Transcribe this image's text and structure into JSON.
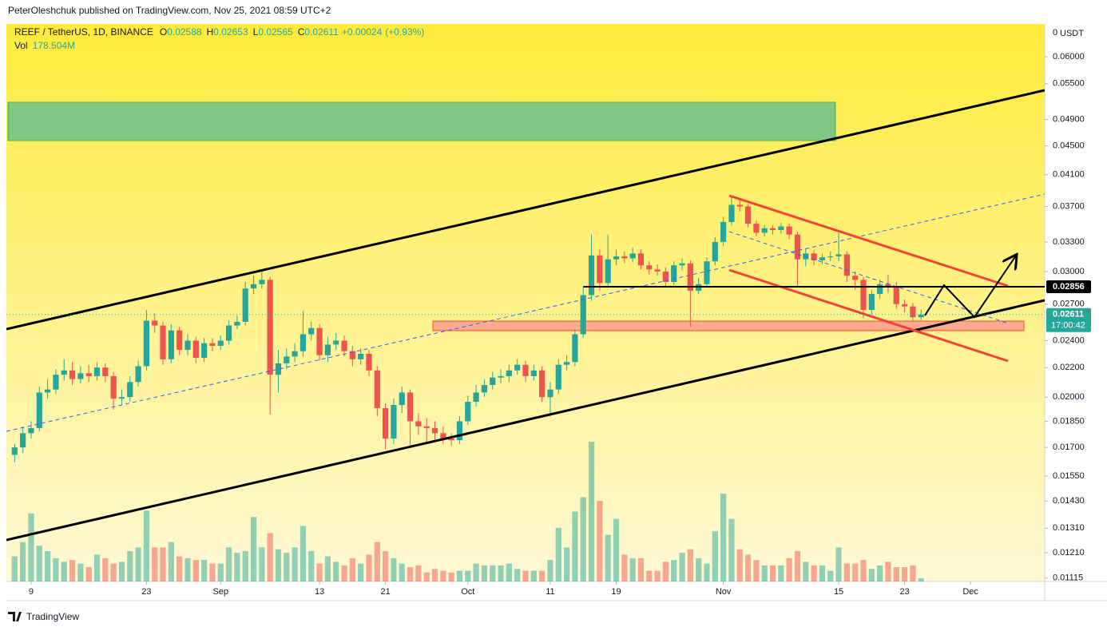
{
  "header": {
    "credit": "PeterOleshchuk published on TradingView.com, Nov 25, 2021 08:59 UTC+2"
  },
  "footer": {
    "brand": "TradingView"
  },
  "chart_data": {
    "type": "candlestick",
    "symbol": "REEF / TetherUS, 1D, BINANCE",
    "ohlc_labels": [
      "O",
      "H",
      "L",
      "C"
    ],
    "change": {
      "value": 0.00024,
      "label": "+0.00024"
    },
    "change_pct": {
      "value": 0.93,
      "label": "(+0.93%)"
    },
    "vol_legend": {
      "label": "Vol",
      "value_label": "178.504M"
    },
    "currency": "USDT",
    "axis_top_text": 0,
    "countdown": "17:00:42",
    "log_scale": true,
    "up_color": "#26a69a",
    "down_color": "#ef5350",
    "hline": {
      "value": 0.02856,
      "color": "#000000"
    },
    "ylim": [
      0.01103,
      0.0667
    ],
    "yticks": [
      {
        "value": 0.06,
        "label": "0.06000"
      },
      {
        "value": 0.055,
        "label": "0.05500"
      },
      {
        "value": 0.049,
        "label": "0.04900"
      },
      {
        "value": 0.045,
        "label": "0.04500"
      },
      {
        "value": 0.041,
        "label": "0.04100"
      },
      {
        "value": 0.037,
        "label": "0.03700"
      },
      {
        "value": 0.033,
        "label": "0.03300"
      },
      {
        "value": 0.03,
        "label": "0.03000"
      },
      {
        "value": 0.027,
        "label": "0.02700"
      },
      {
        "value": 0.024,
        "label": "0.02400"
      },
      {
        "value": 0.022,
        "label": "0.02200"
      },
      {
        "value": 0.02,
        "label": "0.02000"
      },
      {
        "value": 0.0185,
        "label": "0.01850"
      },
      {
        "value": 0.017,
        "label": "0.01700"
      },
      {
        "value": 0.0155,
        "label": "0.01550"
      },
      {
        "value": 0.0143,
        "label": "0.01430"
      },
      {
        "value": 0.0131,
        "label": "0.01310"
      },
      {
        "value": 0.0121,
        "label": "0.01210"
      },
      {
        "value": 0.01115,
        "label": "0.01115"
      }
    ],
    "xlim": [
      "2021-08-06",
      "2021-12-10"
    ],
    "xticks": [
      {
        "value": "2021-08-09",
        "label": "9"
      },
      {
        "value": "2021-08-23",
        "label": "23"
      },
      {
        "value": "2021-09-01",
        "label": "Sep"
      },
      {
        "value": "2021-09-13",
        "label": "13"
      },
      {
        "value": "2021-09-21",
        "label": "21"
      },
      {
        "value": "2021-10-01",
        "label": "Oct"
      },
      {
        "value": "2021-10-11",
        "label": "11"
      },
      {
        "value": "2021-10-19",
        "label": "19"
      },
      {
        "value": "2021-11-01",
        "label": "Nov"
      },
      {
        "value": "2021-11-15",
        "label": "15"
      },
      {
        "value": "2021-11-23",
        "label": "23"
      },
      {
        "value": "2021-12-01",
        "label": "Dec"
      }
    ],
    "x": [
      "2021-08-07",
      "2021-08-08",
      "2021-08-09",
      "2021-08-10",
      "2021-08-11",
      "2021-08-12",
      "2021-08-13",
      "2021-08-14",
      "2021-08-15",
      "2021-08-16",
      "2021-08-17",
      "2021-08-18",
      "2021-08-19",
      "2021-08-20",
      "2021-08-21",
      "2021-08-22",
      "2021-08-23",
      "2021-08-24",
      "2021-08-25",
      "2021-08-26",
      "2021-08-27",
      "2021-08-28",
      "2021-08-29",
      "2021-08-30",
      "2021-08-31",
      "2021-09-01",
      "2021-09-02",
      "2021-09-03",
      "2021-09-04",
      "2021-09-05",
      "2021-09-06",
      "2021-09-07",
      "2021-09-08",
      "2021-09-09",
      "2021-09-10",
      "2021-09-11",
      "2021-09-12",
      "2021-09-13",
      "2021-09-14",
      "2021-09-15",
      "2021-09-16",
      "2021-09-17",
      "2021-09-18",
      "2021-09-19",
      "2021-09-20",
      "2021-09-21",
      "2021-09-22",
      "2021-09-23",
      "2021-09-24",
      "2021-09-25",
      "2021-09-26",
      "2021-09-27",
      "2021-09-28",
      "2021-09-29",
      "2021-09-30",
      "2021-10-01",
      "2021-10-02",
      "2021-10-03",
      "2021-10-04",
      "2021-10-05",
      "2021-10-06",
      "2021-10-07",
      "2021-10-08",
      "2021-10-09",
      "2021-10-10",
      "2021-10-11",
      "2021-10-12",
      "2021-10-13",
      "2021-10-14",
      "2021-10-15",
      "2021-10-16",
      "2021-10-17",
      "2021-10-18",
      "2021-10-19",
      "2021-10-20",
      "2021-10-21",
      "2021-10-22",
      "2021-10-23",
      "2021-10-24",
      "2021-10-25",
      "2021-10-26",
      "2021-10-27",
      "2021-10-28",
      "2021-10-29",
      "2021-10-30",
      "2021-10-31",
      "2021-11-01",
      "2021-11-02",
      "2021-11-03",
      "2021-11-04",
      "2021-11-05",
      "2021-11-06",
      "2021-11-07",
      "2021-11-08",
      "2021-11-09",
      "2021-11-10",
      "2021-11-11",
      "2021-11-12",
      "2021-11-13",
      "2021-11-14",
      "2021-11-15",
      "2021-11-16",
      "2021-11-17",
      "2021-11-18",
      "2021-11-19",
      "2021-11-20",
      "2021-11-21",
      "2021-11-22",
      "2021-11-23",
      "2021-11-24",
      "2021-11-25"
    ],
    "open": [
      0.0166,
      0.017,
      0.0178,
      0.0181,
      0.0203,
      0.0205,
      0.0215,
      0.0218,
      0.0212,
      0.0216,
      0.0214,
      0.022,
      0.0214,
      0.0199,
      0.02,
      0.021,
      0.0221,
      0.0256,
      0.0252,
      0.0226,
      0.0248,
      0.0233,
      0.024,
      0.0227,
      0.0238,
      0.0236,
      0.024,
      0.0252,
      0.0255,
      0.0284,
      0.0288,
      0.0292,
      0.0215,
      0.0223,
      0.0228,
      0.0232,
      0.0245,
      0.025,
      0.0229,
      0.0237,
      0.024,
      0.0232,
      0.0226,
      0.023,
      0.0218,
      0.0193,
      0.0175,
      0.0195,
      0.0203,
      0.0185,
      0.0182,
      0.0181,
      0.0178,
      0.0175,
      0.0174,
      0.0185,
      0.0197,
      0.0203,
      0.0208,
      0.0213,
      0.0214,
      0.0218,
      0.0222,
      0.0214,
      0.0218,
      0.02,
      0.0205,
      0.0222,
      0.0224,
      0.0245,
      0.0278,
      0.0316,
      0.0289,
      0.0312,
      0.0315,
      0.0313,
      0.0318,
      0.0306,
      0.0302,
      0.03,
      0.029,
      0.0306,
      0.0308,
      0.0282,
      0.0288,
      0.031,
      0.033,
      0.0352,
      0.0372,
      0.037,
      0.035,
      0.034,
      0.0345,
      0.0343,
      0.0347,
      0.0338,
      0.0312,
      0.0318,
      0.0311,
      0.0314,
      0.0315,
      0.0317,
      0.0296,
      0.0292,
      0.0265,
      0.0279,
      0.0288,
      0.0286,
      0.027,
      0.0268,
      0.02588
    ],
    "high": [
      0.0172,
      0.0182,
      0.0185,
      0.0207,
      0.0212,
      0.0219,
      0.0226,
      0.0224,
      0.0221,
      0.0222,
      0.0224,
      0.0223,
      0.0217,
      0.0205,
      0.0214,
      0.0225,
      0.0265,
      0.0262,
      0.0255,
      0.0253,
      0.0251,
      0.0245,
      0.0243,
      0.0242,
      0.0242,
      0.0244,
      0.0256,
      0.026,
      0.029,
      0.0296,
      0.03,
      0.0295,
      0.0233,
      0.0234,
      0.0238,
      0.0264,
      0.0255,
      0.0253,
      0.0243,
      0.0246,
      0.0244,
      0.0236,
      0.0234,
      0.0233,
      0.0221,
      0.0196,
      0.0199,
      0.0207,
      0.0205,
      0.019,
      0.0187,
      0.0185,
      0.0182,
      0.0178,
      0.0188,
      0.0201,
      0.0208,
      0.0212,
      0.0217,
      0.0219,
      0.0222,
      0.0226,
      0.0225,
      0.0222,
      0.0221,
      0.021,
      0.0226,
      0.0229,
      0.0249,
      0.0285,
      0.0338,
      0.0322,
      0.0338,
      0.0322,
      0.032,
      0.0324,
      0.0322,
      0.031,
      0.0307,
      0.0304,
      0.031,
      0.0313,
      0.0311,
      0.0294,
      0.0314,
      0.0335,
      0.0358,
      0.0382,
      0.0378,
      0.0373,
      0.0354,
      0.0349,
      0.0348,
      0.0351,
      0.035,
      0.0341,
      0.0323,
      0.0322,
      0.0318,
      0.032,
      0.034,
      0.032,
      0.03,
      0.0295,
      0.0283,
      0.0292,
      0.0297,
      0.029,
      0.0274,
      0.0271,
      0.02653
    ],
    "low": [
      0.0162,
      0.0167,
      0.0175,
      0.0179,
      0.0199,
      0.0202,
      0.0211,
      0.0208,
      0.0209,
      0.021,
      0.0211,
      0.021,
      0.0192,
      0.0195,
      0.0197,
      0.0207,
      0.0218,
      0.0246,
      0.0222,
      0.0223,
      0.0229,
      0.0229,
      0.0223,
      0.0224,
      0.0232,
      0.0233,
      0.0237,
      0.0249,
      0.0252,
      0.0279,
      0.0284,
      0.0189,
      0.0203,
      0.0219,
      0.0224,
      0.0228,
      0.024,
      0.0225,
      0.0224,
      0.0233,
      0.0228,
      0.0221,
      0.0222,
      0.0214,
      0.0188,
      0.0169,
      0.0172,
      0.019,
      0.0171,
      0.0177,
      0.0172,
      0.0174,
      0.0172,
      0.0171,
      0.0172,
      0.0183,
      0.0194,
      0.02,
      0.0205,
      0.0209,
      0.021,
      0.0215,
      0.021,
      0.0211,
      0.0197,
      0.0188,
      0.0202,
      0.0218,
      0.0221,
      0.0242,
      0.0273,
      0.0282,
      0.0285,
      0.0306,
      0.0308,
      0.0309,
      0.0302,
      0.0297,
      0.0296,
      0.0286,
      0.0287,
      0.0301,
      0.0251,
      0.0279,
      0.0285,
      0.0306,
      0.0326,
      0.0348,
      0.0364,
      0.0346,
      0.0336,
      0.0336,
      0.0338,
      0.0339,
      0.0333,
      0.0285,
      0.0305,
      0.0306,
      0.0307,
      0.031,
      0.031,
      0.029,
      0.0283,
      0.0258,
      0.0261,
      0.0275,
      0.028,
      0.0266,
      0.0263,
      0.0255,
      0.02565
    ],
    "close": [
      0.017,
      0.0178,
      0.0181,
      0.0203,
      0.0205,
      0.0215,
      0.0218,
      0.0212,
      0.0216,
      0.0214,
      0.022,
      0.0214,
      0.0199,
      0.02,
      0.021,
      0.0221,
      0.0256,
      0.0252,
      0.0226,
      0.0248,
      0.0233,
      0.024,
      0.0227,
      0.0238,
      0.0236,
      0.024,
      0.0252,
      0.0255,
      0.0284,
      0.0288,
      0.0292,
      0.0215,
      0.0223,
      0.0228,
      0.0232,
      0.0245,
      0.025,
      0.0229,
      0.0237,
      0.024,
      0.0232,
      0.0226,
      0.023,
      0.0218,
      0.0193,
      0.0175,
      0.0195,
      0.0203,
      0.0185,
      0.0182,
      0.0181,
      0.0178,
      0.0175,
      0.0174,
      0.0185,
      0.0197,
      0.0203,
      0.0208,
      0.0213,
      0.0214,
      0.0218,
      0.0222,
      0.0214,
      0.0218,
      0.02,
      0.0205,
      0.0222,
      0.0224,
      0.0245,
      0.0278,
      0.0316,
      0.0289,
      0.0312,
      0.0315,
      0.0313,
      0.0318,
      0.0306,
      0.0302,
      0.03,
      0.029,
      0.0306,
      0.0308,
      0.0282,
      0.0288,
      0.031,
      0.033,
      0.0352,
      0.0372,
      0.037,
      0.035,
      0.034,
      0.0345,
      0.0343,
      0.0347,
      0.0338,
      0.0312,
      0.0318,
      0.0311,
      0.0314,
      0.0315,
      0.0317,
      0.0296,
      0.0292,
      0.0265,
      0.0279,
      0.0288,
      0.0286,
      0.027,
      0.0268,
      0.02588,
      0.02611
    ],
    "volume": [
      1400,
      2200,
      3800,
      2000,
      1700,
      1300,
      1100,
      1200,
      1000,
      800,
      1500,
      1300,
      1000,
      1100,
      1700,
      1900,
      3950,
      1900,
      1900,
      2200,
      1400,
      1300,
      1200,
      1200,
      1000,
      1000,
      1900,
      1600,
      1700,
      3600,
      1900,
      2700,
      1800,
      1600,
      1900,
      3100,
      1700,
      1000,
      1400,
      1100,
      900,
      1300,
      1000,
      1500,
      2200,
      1700,
      1300,
      1000,
      800,
      900,
      500,
      700,
      600,
      500,
      600,
      600,
      1000,
      900,
      900,
      900,
      1000,
      700,
      600,
      600,
      600,
      1200,
      3000,
      1900,
      3900,
      4700,
      7800,
      4500,
      2600,
      3500,
      1500,
      1300,
      1300,
      600,
      600,
      1100,
      1200,
      1600,
      1800,
      1300,
      1000,
      2800,
      4900,
      3500,
      1800,
      1500,
      1200,
      900,
      900,
      900,
      1300,
      1700,
      1100,
      900,
      900,
      600,
      1900,
      1000,
      1000,
      1200,
      700,
      900,
      1100,
      800,
      800,
      900,
      178.504
    ]
  }
}
